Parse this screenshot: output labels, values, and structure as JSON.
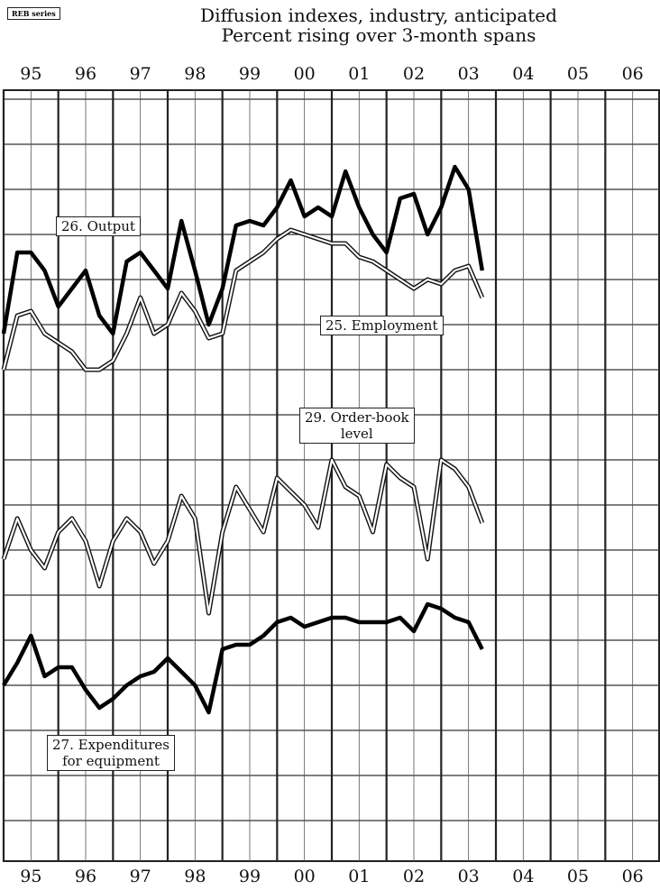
{
  "reb_label": "REB series",
  "chart_data": {
    "type": "line",
    "title": "Diffusion indexes, industry, anticipated",
    "subtitle": "Percent rising over 3-month spans",
    "xlim": [
      1995,
      2007
    ],
    "xticks": [
      {
        "value": 1995,
        "label": "95"
      },
      {
        "value": 1996,
        "label": "96"
      },
      {
        "value": 1997,
        "label": "97"
      },
      {
        "value": 1998,
        "label": "98"
      },
      {
        "value": 1999,
        "label": "99"
      },
      {
        "value": 2000,
        "label": "00"
      },
      {
        "value": 2001,
        "label": "01"
      },
      {
        "value": 2002,
        "label": "02"
      },
      {
        "value": 2003,
        "label": "03"
      },
      {
        "value": 2004,
        "label": "04"
      },
      {
        "value": 2005,
        "label": "05"
      },
      {
        "value": 2006,
        "label": "06"
      }
    ],
    "ylim": [
      0,
      172
    ],
    "yticks": [
      10,
      20,
      30,
      40,
      50,
      60,
      70,
      80,
      90,
      100,
      110,
      120,
      130,
      140,
      150,
      160,
      170
    ],
    "grid": true,
    "x": [
      1995,
      1995.25,
      1995.5,
      1995.75,
      1996,
      1996.25,
      1996.5,
      1996.75,
      1997,
      1997.25,
      1997.5,
      1997.75,
      1998,
      1998.25,
      1998.5,
      1998.75,
      1999,
      1999.25,
      1999.5,
      1999.75,
      2000,
      2000.25,
      2000.5,
      2000.75,
      2001,
      2001.25,
      2001.5,
      2001.75,
      2002,
      2002.25,
      2002.5,
      2002.75,
      2003,
      2003.25,
      2003.5,
      2003.75
    ],
    "series": [
      {
        "name": "26. Output",
        "color": "#000000",
        "style": "solid",
        "values": [
          118,
          136,
          136,
          132,
          124,
          128,
          132,
          122,
          118,
          134,
          136,
          132,
          128,
          143,
          132,
          120,
          128,
          142,
          143,
          142,
          146,
          152,
          144,
          146,
          144,
          154,
          146,
          140,
          136,
          148,
          149,
          140,
          146,
          155,
          150,
          132
        ]
      },
      {
        "name": "25. Employment",
        "color": "#ffffff",
        "style": "double",
        "values": [
          110,
          122,
          123,
          118,
          116,
          114,
          110,
          110,
          112,
          118,
          126,
          118,
          120,
          127,
          123,
          117,
          118,
          132,
          134,
          136,
          139,
          141,
          140,
          139,
          138,
          138,
          135,
          134,
          132,
          130,
          128,
          130,
          129,
          132,
          133,
          126
        ]
      },
      {
        "name": "29. Order-book\nlevel",
        "color": "#ffffff",
        "style": "double",
        "values": [
          68,
          77,
          70,
          66,
          74,
          77,
          72,
          62,
          72,
          77,
          74,
          67,
          72,
          82,
          77,
          56,
          74,
          84,
          79,
          74,
          86,
          83,
          80,
          75,
          90,
          84,
          82,
          74,
          89,
          86,
          84,
          68,
          90,
          88,
          84,
          76
        ]
      },
      {
        "name": "27. Expenditures\nfor equipment",
        "color": "#000000",
        "style": "solid",
        "values": [
          40,
          45,
          51,
          42,
          44,
          44,
          39,
          35,
          37,
          40,
          42,
          43,
          46,
          43,
          40,
          34,
          48,
          49,
          49,
          51,
          54,
          55,
          53,
          54,
          55,
          55,
          54,
          54,
          54,
          55,
          52,
          58,
          57,
          55,
          54,
          48
        ]
      }
    ]
  }
}
